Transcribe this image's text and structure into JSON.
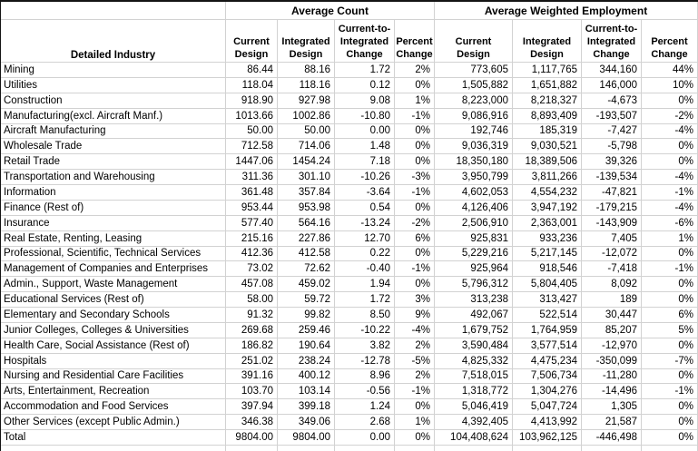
{
  "chart_data": {
    "type": "table",
    "column_groups": [
      "Average Count",
      "Average Weighted Employment"
    ],
    "industry_header": "Detailed Industry",
    "sub_headers": [
      "Current Design",
      "Integrated Design",
      "Current-to-Integrated Change",
      "Percent Change"
    ],
    "rows": [
      {
        "industry": "Mining",
        "values": [
          "86.44",
          "88.16",
          "1.72",
          "2%",
          "773,605",
          "1,117,765",
          "344,160",
          "44%"
        ]
      },
      {
        "industry": "Utilities",
        "values": [
          "118.04",
          "118.16",
          "0.12",
          "0%",
          "1,505,882",
          "1,651,882",
          "146,000",
          "10%"
        ]
      },
      {
        "industry": "Construction",
        "values": [
          "918.90",
          "927.98",
          "9.08",
          "1%",
          "8,223,000",
          "8,218,327",
          "-4,673",
          "0%"
        ]
      },
      {
        "industry": "Manufacturing(excl. Aircraft Manf.)",
        "values": [
          "1013.66",
          "1002.86",
          "-10.80",
          "-1%",
          "9,086,916",
          "8,893,409",
          "-193,507",
          "-2%"
        ]
      },
      {
        "industry": "Aircraft Manufacturing",
        "values": [
          "50.00",
          "50.00",
          "0.00",
          "0%",
          "192,746",
          "185,319",
          "-7,427",
          "-4%"
        ]
      },
      {
        "industry": "Wholesale Trade",
        "values": [
          "712.58",
          "714.06",
          "1.48",
          "0%",
          "9,036,319",
          "9,030,521",
          "-5,798",
          "0%"
        ]
      },
      {
        "industry": "Retail Trade",
        "values": [
          "1447.06",
          "1454.24",
          "7.18",
          "0%",
          "18,350,180",
          "18,389,506",
          "39,326",
          "0%"
        ]
      },
      {
        "industry": "Transportation and Warehousing",
        "values": [
          "311.36",
          "301.10",
          "-10.26",
          "-3%",
          "3,950,799",
          "3,811,266",
          "-139,534",
          "-4%"
        ]
      },
      {
        "industry": "Information",
        "values": [
          "361.48",
          "357.84",
          "-3.64",
          "-1%",
          "4,602,053",
          "4,554,232",
          "-47,821",
          "-1%"
        ]
      },
      {
        "industry": "Finance (Rest of)",
        "values": [
          "953.44",
          "953.98",
          "0.54",
          "0%",
          "4,126,406",
          "3,947,192",
          "-179,215",
          "-4%"
        ]
      },
      {
        "industry": "Insurance",
        "values": [
          "577.40",
          "564.16",
          "-13.24",
          "-2%",
          "2,506,910",
          "2,363,001",
          "-143,909",
          "-6%"
        ]
      },
      {
        "industry": "Real Estate, Renting, Leasing",
        "values": [
          "215.16",
          "227.86",
          "12.70",
          "6%",
          "925,831",
          "933,236",
          "7,405",
          "1%"
        ]
      },
      {
        "industry": "Professional, Scientific, Technical Services",
        "values": [
          "412.36",
          "412.58",
          "0.22",
          "0%",
          "5,229,216",
          "5,217,145",
          "-12,072",
          "0%"
        ]
      },
      {
        "industry": "Management of Companies and Enterprises",
        "values": [
          "73.02",
          "72.62",
          "-0.40",
          "-1%",
          "925,964",
          "918,546",
          "-7,418",
          "-1%"
        ]
      },
      {
        "industry": "Admin., Support, Waste Management",
        "values": [
          "457.08",
          "459.02",
          "1.94",
          "0%",
          "5,796,312",
          "5,804,405",
          "8,092",
          "0%"
        ]
      },
      {
        "industry": "Educational Services (Rest of)",
        "values": [
          "58.00",
          "59.72",
          "1.72",
          "3%",
          "313,238",
          "313,427",
          "189",
          "0%"
        ]
      },
      {
        "industry": "Elementary and Secondary Schools",
        "values": [
          "91.32",
          "99.82",
          "8.50",
          "9%",
          "492,067",
          "522,514",
          "30,447",
          "6%"
        ]
      },
      {
        "industry": "Junior Colleges, Colleges & Universities",
        "values": [
          "269.68",
          "259.46",
          "-10.22",
          "-4%",
          "1,679,752",
          "1,764,959",
          "85,207",
          "5%"
        ]
      },
      {
        "industry": "Health Care, Social Assistance (Rest of)",
        "values": [
          "186.82",
          "190.64",
          "3.82",
          "2%",
          "3,590,484",
          "3,577,514",
          "-12,970",
          "0%"
        ]
      },
      {
        "industry": "Hospitals",
        "values": [
          "251.02",
          "238.24",
          "-12.78",
          "-5%",
          "4,825,332",
          "4,475,234",
          "-350,099",
          "-7%"
        ]
      },
      {
        "industry": "Nursing and Residential Care Facilities",
        "values": [
          "391.16",
          "400.12",
          "8.96",
          "2%",
          "7,518,015",
          "7,506,734",
          "-11,280",
          "0%"
        ]
      },
      {
        "industry": "Arts, Entertainment, Recreation",
        "values": [
          "103.70",
          "103.14",
          "-0.56",
          "-1%",
          "1,318,772",
          "1,304,276",
          "-14,496",
          "-1%"
        ]
      },
      {
        "industry": "Accommodation and Food Services",
        "values": [
          "397.94",
          "399.18",
          "1.24",
          "0%",
          "5,046,419",
          "5,047,724",
          "1,305",
          "0%"
        ]
      },
      {
        "industry": "Other Services (except Public Admin.)",
        "values": [
          "346.38",
          "349.06",
          "2.68",
          "1%",
          "4,392,405",
          "4,413,992",
          "21,587",
          "0%"
        ]
      },
      {
        "industry": "Total",
        "values": [
          "9804.00",
          "9804.00",
          "0.00",
          "0%",
          "104,408,624",
          "103,962,125",
          "-446,498",
          "0%"
        ]
      }
    ],
    "colors": {
      "gridline": "#d2d2d2",
      "outer_border": "#141414",
      "text": "#000000",
      "background": "#ffffff"
    },
    "layout": {
      "header_bold": true,
      "numbers_right_aligned": true,
      "gridlines": true
    }
  }
}
